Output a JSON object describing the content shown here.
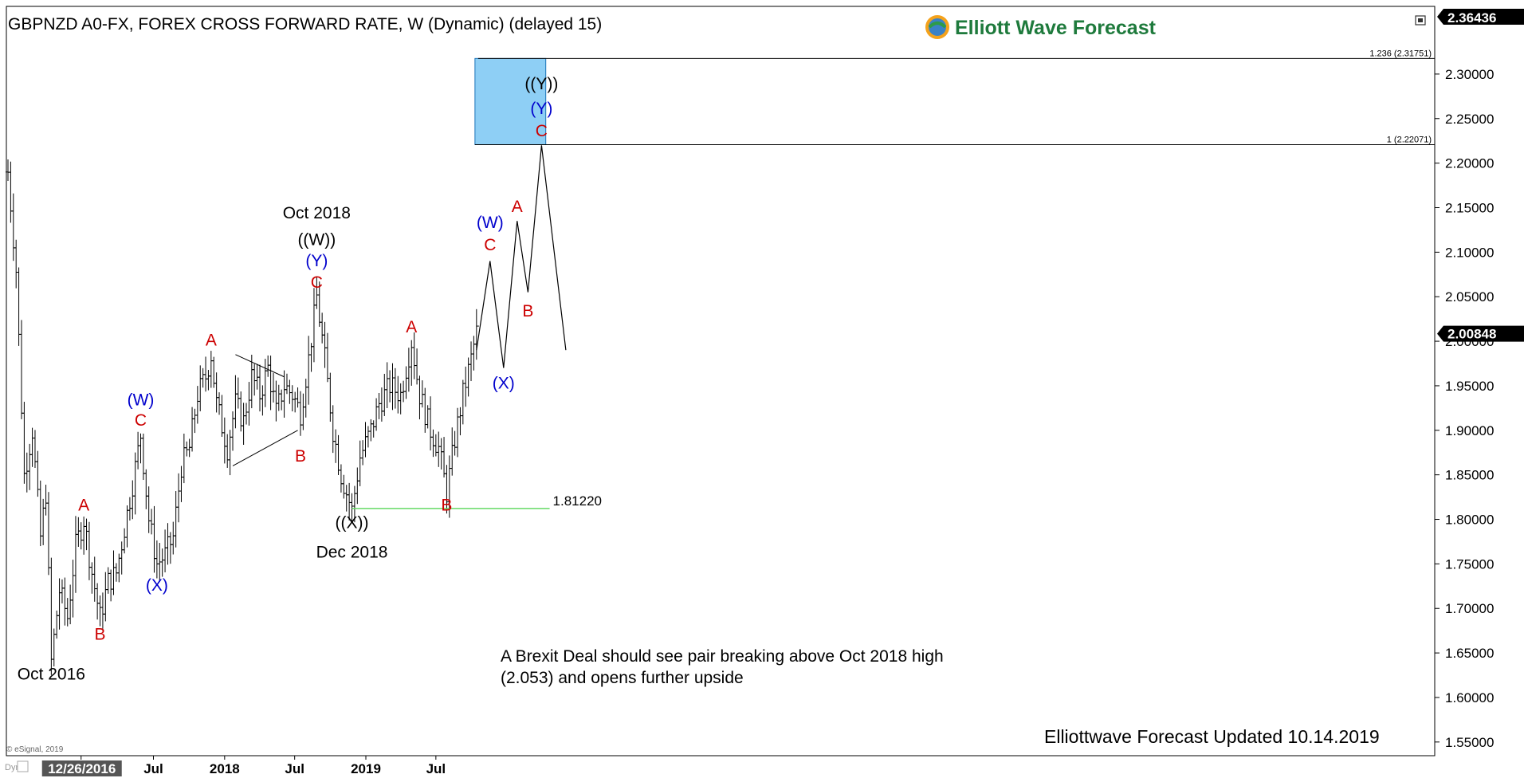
{
  "title": "GBPNZD A0-FX, FOREX CROSS FORWARD RATE, W (Dynamic) (delayed 15)",
  "brand": "Elliott Wave Forecast",
  "updated": "Elliottwave Forecast Updated 10.14.2019",
  "note_line1": "A Brexit Deal should see pair breaking above Oct 2018 high",
  "note_line2": "(2.053) and opens further upside",
  "copyright": "© eSignal, 2019",
  "dyn_label": "Dyn",
  "last_price_label": "2.00848",
  "top_price_label": "2.36436",
  "support_label": "1.81220",
  "fib_1236_label": "1.236 (2.31751)",
  "fib_1_label": "1 (2.22071)",
  "colors": {
    "red": "#cc0000",
    "blue": "#0000cc",
    "black": "#000000",
    "target_box": "#8ecff5",
    "target_box_border": "#1a73b8",
    "support": "#66d966",
    "brand_green": "#1e7a3c"
  },
  "chart_data": {
    "type": "ohlc",
    "ylim": [
      1.54,
      2.36436
    ],
    "y_ticks": [
      1.55,
      1.6,
      1.65,
      1.7,
      1.75,
      1.8,
      1.85,
      1.9,
      1.95,
      2.0,
      2.05,
      2.1,
      2.15,
      2.2,
      2.25,
      2.3
    ],
    "y_tick_labels": [
      "1.55000",
      "1.60000",
      "1.65000",
      "1.70000",
      "1.75000",
      "1.80000",
      "1.85000",
      "1.90000",
      "1.95000",
      "2.00000",
      "2.05000",
      "2.10000",
      "2.15000",
      "2.20000",
      "2.25000",
      "2.30000"
    ],
    "x_labels": [
      {
        "label": "12/26/2016",
        "date": "2016-12-26",
        "highlight": true
      },
      {
        "label": "Jul",
        "date": "2017-07-01"
      },
      {
        "label": "2018",
        "date": "2018-01-01"
      },
      {
        "label": "Jul",
        "date": "2018-07-01"
      },
      {
        "label": "2019",
        "date": "2019-01-01"
      },
      {
        "label": "Jul",
        "date": "2019-07-01"
      }
    ],
    "price_path": [
      [
        "2016-06-20",
        2.19
      ],
      [
        "2016-07-11",
        2.08
      ],
      [
        "2016-08-01",
        1.85
      ],
      [
        "2016-08-22",
        1.9
      ],
      [
        "2016-09-12",
        1.78
      ],
      [
        "2016-09-26",
        1.83
      ],
      [
        "2016-10-10",
        1.64
      ],
      [
        "2016-10-31",
        1.72
      ],
      [
        "2016-11-21",
        1.69
      ],
      [
        "2016-12-12",
        1.77
      ],
      [
        "2017-01-02",
        1.8
      ],
      [
        "2017-01-23",
        1.74
      ],
      [
        "2017-02-13",
        1.69
      ],
      [
        "2017-03-06",
        1.73
      ],
      [
        "2017-03-27",
        1.74
      ],
      [
        "2017-04-17",
        1.79
      ],
      [
        "2017-05-08",
        1.84
      ],
      [
        "2017-05-29",
        1.895
      ],
      [
        "2017-06-19",
        1.8
      ],
      [
        "2017-07-10",
        1.75
      ],
      [
        "2017-07-31",
        1.76
      ],
      [
        "2017-08-21",
        1.78
      ],
      [
        "2017-09-11",
        1.86
      ],
      [
        "2017-10-02",
        1.88
      ],
      [
        "2017-10-23",
        1.94
      ],
      [
        "2017-11-13",
        1.96
      ],
      [
        "2017-11-27",
        1.985
      ],
      [
        "2017-12-11",
        1.93
      ],
      [
        "2018-01-08",
        1.88
      ],
      [
        "2018-01-29",
        1.93
      ],
      [
        "2018-02-19",
        1.91
      ],
      [
        "2018-03-12",
        1.96
      ],
      [
        "2018-04-02",
        1.94
      ],
      [
        "2018-04-23",
        1.97
      ],
      [
        "2018-05-14",
        1.92
      ],
      [
        "2018-06-04",
        1.95
      ],
      [
        "2018-06-25",
        1.94
      ],
      [
        "2018-07-16",
        1.92
      ],
      [
        "2018-08-06",
        1.98
      ],
      [
        "2018-08-27",
        2.05
      ],
      [
        "2018-09-17",
        1.98
      ],
      [
        "2018-10-08",
        1.9
      ],
      [
        "2018-10-29",
        1.85
      ],
      [
        "2018-11-26",
        1.81
      ],
      [
        "2018-12-17",
        1.87
      ],
      [
        "2019-01-14",
        1.9
      ],
      [
        "2019-02-04",
        1.93
      ],
      [
        "2019-03-04",
        1.95
      ],
      [
        "2019-04-01",
        1.94
      ],
      [
        "2019-04-29",
        2.0
      ],
      [
        "2019-05-20",
        1.94
      ],
      [
        "2019-06-17",
        1.9
      ],
      [
        "2019-07-08",
        1.88
      ],
      [
        "2019-07-29",
        1.83
      ],
      [
        "2019-08-19",
        1.89
      ],
      [
        "2019-09-09",
        1.94
      ],
      [
        "2019-09-30",
        1.98
      ],
      [
        "2019-10-14",
        2.01
      ]
    ],
    "projection_path": [
      [
        "2019-10-14",
        1.99
      ],
      [
        "2019-11-18",
        2.09
      ],
      [
        "2019-12-23",
        1.97
      ],
      [
        "2020-01-27",
        2.135
      ],
      [
        "2020-02-24",
        2.055
      ],
      [
        "2020-03-30",
        2.22
      ],
      [
        "2020-06-01",
        1.99
      ]
    ],
    "target_box": {
      "x_start": "2019-10-10",
      "x_end": "2020-04-10",
      "y_low": 2.22071,
      "y_high": 2.31751
    },
    "fib_1236_level": 2.31751,
    "fib_1_level": 2.22071,
    "support_level": 1.8122,
    "support_from": "2018-11-26",
    "support_to": "2020-04-20",
    "triangle_lines": [
      [
        [
          "2018-01-29",
          1.985
        ],
        [
          "2018-06-04",
          1.96
        ]
      ],
      [
        [
          "2018-01-22",
          1.86
        ],
        [
          "2018-07-09",
          1.9
        ]
      ]
    ],
    "wave_labels": [
      {
        "text": "A",
        "date": "2017-01-02",
        "price": 1.81,
        "color": "red"
      },
      {
        "text": "B",
        "date": "2017-02-13",
        "price": 1.665,
        "color": "red"
      },
      {
        "text": "C",
        "date": "2017-05-29",
        "price": 1.905,
        "color": "red"
      },
      {
        "text": "(W)",
        "date": "2017-05-29",
        "price": 1.928,
        "color": "blue"
      },
      {
        "text": "(X)",
        "date": "2017-07-10",
        "price": 1.72,
        "color": "blue"
      },
      {
        "text": "A",
        "date": "2017-11-27",
        "price": 1.995,
        "color": "red"
      },
      {
        "text": "B",
        "date": "2018-07-16",
        "price": 1.865,
        "color": "red"
      },
      {
        "text": "C",
        "date": "2018-08-27",
        "price": 2.06,
        "color": "red"
      },
      {
        "text": "(Y)",
        "date": "2018-08-27",
        "price": 2.084,
        "color": "blue"
      },
      {
        "text": "((W))",
        "date": "2018-08-27",
        "price": 2.108,
        "color": "black"
      },
      {
        "text": "Oct 2018",
        "date": "2018-08-27",
        "price": 2.138,
        "color": "black"
      },
      {
        "text": "((X))",
        "date": "2018-11-26",
        "price": 1.79,
        "color": "black"
      },
      {
        "text": "Dec 2018",
        "date": "2018-11-26",
        "price": 1.757,
        "color": "black"
      },
      {
        "text": "A",
        "date": "2019-04-29",
        "price": 2.01,
        "color": "red"
      },
      {
        "text": "B",
        "date": "2019-07-29",
        "price": 1.81,
        "color": "red"
      },
      {
        "text": "C",
        "date": "2019-11-18",
        "price": 2.102,
        "color": "red"
      },
      {
        "text": "(W)",
        "date": "2019-11-18",
        "price": 2.127,
        "color": "blue"
      },
      {
        "text": "(X)",
        "date": "2019-12-23",
        "price": 1.947,
        "color": "blue"
      },
      {
        "text": "A",
        "date": "2020-01-27",
        "price": 2.145,
        "color": "red"
      },
      {
        "text": "B",
        "date": "2020-02-24",
        "price": 2.028,
        "color": "red"
      },
      {
        "text": "C",
        "date": "2020-03-30",
        "price": 2.23,
        "color": "red"
      },
      {
        "text": "(Y)",
        "date": "2020-03-30",
        "price": 2.255,
        "color": "blue"
      },
      {
        "text": "((Y))",
        "date": "2020-03-30",
        "price": 2.283,
        "color": "black"
      },
      {
        "text": "Oct 2016",
        "date": "2016-10-10",
        "price": 1.62,
        "color": "black"
      }
    ]
  }
}
